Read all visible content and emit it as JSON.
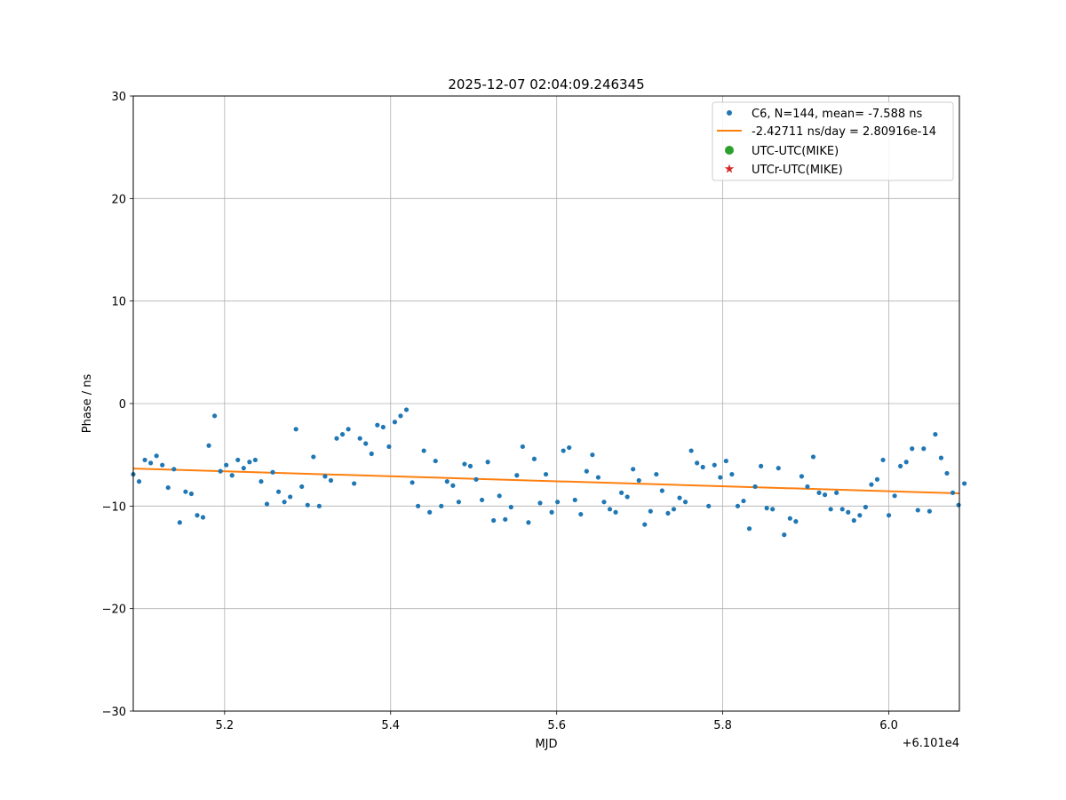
{
  "chart_data": {
    "type": "scatter",
    "title": "2025-12-07 02:04:09.246345",
    "xlabel": "MJD",
    "ylabel": "Phase / ns",
    "x_offset_text": "+6.101e4",
    "xlim": [
      61015.09,
      61016.085
    ],
    "ylim": [
      -30,
      30
    ],
    "x_ticks": [
      61015.2,
      61015.4,
      61015.6,
      61015.8,
      61016.0
    ],
    "x_tick_labels": [
      "5.2",
      "5.4",
      "5.6",
      "5.8",
      "6.0"
    ],
    "y_ticks": [
      -30,
      -20,
      -10,
      0,
      10,
      20,
      30
    ],
    "y_tick_labels": [
      "−30",
      "−20",
      "−10",
      "0",
      "10",
      "20",
      "30"
    ],
    "grid": true,
    "legend_position": "top-right",
    "legend": [
      {
        "label": "C6, N=144, mean= -7.588 ns",
        "marker": "dot",
        "color": "#1f77b4"
      },
      {
        "label": "-2.42711 ns/day = 2.80916e-14",
        "marker": "line",
        "color": "#ff7f0e"
      },
      {
        "label": "UTC-UTC(MIKE)",
        "marker": "big-dot",
        "color": "#2ca02c"
      },
      {
        "label": "UTCr-UTC(MIKE)",
        "marker": "star",
        "color": "#d62728"
      }
    ],
    "series": [
      {
        "name": "C6, N=144, mean= -7.588 ns",
        "type": "scatter",
        "color": "#1f77b4",
        "x": [
          61015.09,
          61015.097,
          61015.104,
          61015.111,
          61015.118,
          61015.125,
          61015.132,
          61015.139,
          61015.146,
          61015.153,
          61015.16,
          61015.167,
          61015.174,
          61015.181,
          61015.188,
          61015.195,
          61015.202,
          61015.209,
          61015.216,
          61015.223,
          61015.23,
          61015.237,
          61015.244,
          61015.251,
          61015.258,
          61015.265,
          61015.272,
          61015.279,
          61015.286,
          61015.293,
          61015.3,
          61015.307,
          61015.314,
          61015.321,
          61015.328,
          61015.335,
          61015.342,
          61015.349,
          61015.356,
          61015.363,
          61015.37,
          61015.377,
          61015.384,
          61015.391,
          61015.398,
          61015.405,
          61015.412,
          61015.419,
          61015.426,
          61015.433,
          61015.44,
          61015.447,
          61015.454,
          61015.461,
          61015.468,
          61015.475,
          61015.482,
          61015.489,
          61015.496,
          61015.503,
          61015.51,
          61015.517,
          61015.524,
          61015.531,
          61015.538,
          61015.545,
          61015.552,
          61015.559,
          61015.566,
          61015.573,
          61015.58,
          61015.587,
          61015.594,
          61015.601,
          61015.608,
          61015.615,
          61015.622,
          61015.629,
          61015.636,
          61015.643,
          61015.65,
          61015.657,
          61015.664,
          61015.671,
          61015.678,
          61015.685,
          61015.692,
          61015.699,
          61015.706,
          61015.713,
          61015.72,
          61015.727,
          61015.734,
          61015.741,
          61015.748,
          61015.755,
          61015.762,
          61015.769,
          61015.776,
          61015.783,
          61015.79,
          61015.797,
          61015.804,
          61015.811,
          61015.818,
          61015.825,
          61015.832,
          61015.839,
          61015.846,
          61015.853,
          61015.86,
          61015.867,
          61015.874,
          61015.881,
          61015.888,
          61015.895,
          61015.902,
          61015.909,
          61015.916,
          61015.923,
          61015.93,
          61015.937,
          61015.944,
          61015.951,
          61015.958,
          61015.965,
          61015.972,
          61015.979,
          61015.986,
          61015.993,
          61016.0,
          61016.007,
          61016.014,
          61016.021,
          61016.028,
          61016.035,
          61016.042,
          61016.049,
          61016.056,
          61016.063,
          61016.07,
          61016.077,
          61016.084,
          61016.091
        ],
        "y": [
          -6.9,
          -7.6,
          -5.5,
          -5.8,
          -5.1,
          -6.0,
          -8.2,
          -6.4,
          -11.6,
          -8.6,
          -8.8,
          -10.9,
          -11.1,
          -4.1,
          -1.2,
          -6.6,
          -6.0,
          -7.0,
          -5.5,
          -6.3,
          -5.7,
          -5.5,
          -7.6,
          -9.8,
          -6.7,
          -8.6,
          -9.6,
          -9.1,
          -2.5,
          -8.1,
          -9.9,
          -5.2,
          -10.0,
          -7.1,
          -7.5,
          -3.4,
          -3.0,
          -2.5,
          -7.8,
          -3.4,
          -3.9,
          -4.9,
          -2.1,
          -2.3,
          -4.2,
          -1.8,
          -1.2,
          -0.6,
          -7.7,
          -10.0,
          -4.6,
          -10.6,
          -5.6,
          -10.0,
          -7.6,
          -8.0,
          -9.6,
          -5.9,
          -6.1,
          -7.4,
          -9.4,
          -5.7,
          -11.4,
          -9.0,
          -11.3,
          -10.1,
          -7.0,
          -4.2,
          -11.6,
          -5.4,
          -9.7,
          -6.9,
          -10.6,
          -9.6,
          -4.6,
          -4.3,
          -9.4,
          -10.8,
          -6.6,
          -5.0,
          -7.2,
          -9.6,
          -10.3,
          -10.6,
          -8.7,
          -9.1,
          -6.4,
          -7.5,
          -11.8,
          -10.5,
          -6.9,
          -8.5,
          -10.7,
          -10.3,
          -9.2,
          -9.6,
          -4.6,
          -5.8,
          -6.2,
          -10.0,
          -6.0,
          -7.2,
          -5.6,
          -6.9,
          -10.0,
          -9.5,
          -12.2,
          -8.1,
          -6.1,
          -10.2,
          -10.3,
          -6.3,
          -12.8,
          -11.2,
          -11.5,
          -7.1,
          -8.1,
          -5.2,
          -8.7,
          -8.9,
          -10.3,
          -8.7,
          -10.3,
          -10.6,
          -11.4,
          -10.9,
          -10.1,
          -7.9,
          -7.4,
          -5.5,
          -10.9,
          -9.0,
          -6.1,
          -5.7,
          -4.4,
          -10.4,
          -4.4,
          -10.5,
          -3.0,
          -5.3,
          -6.8,
          -8.7,
          -9.9,
          -7.8
        ]
      },
      {
        "name": "-2.42711 ns/day = 2.80916e-14",
        "type": "line",
        "color": "#ff7f0e",
        "x": [
          61015.09,
          61016.085
        ],
        "y": [
          -6.34,
          -8.76
        ]
      }
    ]
  }
}
